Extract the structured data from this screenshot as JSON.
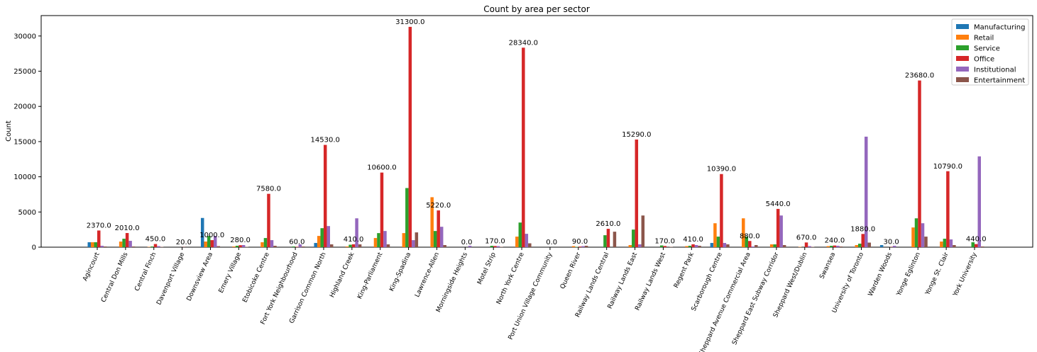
{
  "chart_data": {
    "type": "bar",
    "title": "Count by area per sector",
    "xlabel": "",
    "ylabel": "Count",
    "ylim": [
      0,
      32900
    ],
    "yticks": [
      0,
      5000,
      10000,
      15000,
      20000,
      25000,
      30000
    ],
    "grid": false,
    "legend_position": "top-right",
    "categories": [
      "Agincourt",
      "Central Don Mills",
      "Central Finch",
      "Davenport Village",
      "Downsview Area",
      "Emery Village",
      "Etobicoke Centre",
      "Fort York Neighbourhood",
      "Garrison Common North",
      "Highland Creek",
      "King-Parliament",
      "King-Spadina",
      "Lawrence-Allen",
      "Morningside Heights",
      "Motel Strip",
      "North York Centre",
      "Port Union Village Community",
      "Queen River",
      "Railway Lands Central",
      "Railway Lands East",
      "Railway Lands West",
      "Regent Park",
      "Scarborough Centre",
      "Sheppard Avenue Commercial Area",
      "Sheppard East Subway Corridor",
      "Sheppard West/Dublin",
      "Swansea",
      "University of Toronto",
      "Warden Woods",
      "Yonge Eglinton",
      "Yonge St. Clair",
      "York University"
    ],
    "series": [
      {
        "name": "Manufacturing",
        "color": "#1f77b4",
        "values": [
          700,
          0,
          0,
          0,
          4150,
          0,
          0,
          0,
          600,
          0,
          0,
          0,
          0,
          0,
          0,
          0,
          0,
          0,
          0,
          0,
          0,
          0,
          600,
          0,
          0,
          0,
          0,
          0,
          300,
          0,
          0,
          0
        ]
      },
      {
        "name": "Retail",
        "color": "#ff7f0e",
        "values": [
          700,
          800,
          50,
          0,
          800,
          100,
          700,
          0,
          1600,
          100,
          1300,
          2000,
          7100,
          0,
          0,
          1500,
          0,
          150,
          0,
          300,
          0,
          150,
          3400,
          4100,
          400,
          50,
          150,
          300,
          0,
          2800,
          800,
          0
        ]
      },
      {
        "name": "Service",
        "color": "#2ca02c",
        "values": [
          700,
          1200,
          100,
          0,
          1600,
          200,
          1300,
          100,
          2700,
          350,
          2000,
          8400,
          2300,
          0,
          200,
          3500,
          0,
          50,
          1700,
          2500,
          250,
          200,
          1500,
          1500,
          400,
          0,
          200,
          500,
          0,
          4100,
          1200,
          700
        ]
      },
      {
        "name": "Office",
        "color": "#d62728",
        "values": [
          2370,
          2010,
          450,
          20,
          1000,
          280,
          7580,
          60,
          14530,
          410,
          10600,
          31300,
          5220,
          0,
          170,
          28340,
          0,
          90,
          2610,
          15290,
          170,
          410,
          10390,
          880,
          5440,
          670,
          240,
          1880,
          30,
          23680,
          10790,
          440
        ]
      },
      {
        "name": "Institutional",
        "color": "#9467bd",
        "values": [
          200,
          900,
          150,
          0,
          1600,
          300,
          1000,
          400,
          3000,
          4100,
          2300,
          1000,
          2900,
          200,
          150,
          1900,
          0,
          150,
          0,
          400,
          0,
          300,
          600,
          100,
          4500,
          150,
          200,
          15700,
          200,
          3400,
          1100,
          12900
        ]
      },
      {
        "name": "Entertainment",
        "color": "#8c564b",
        "values": [
          100,
          100,
          50,
          0,
          150,
          50,
          200,
          100,
          400,
          400,
          400,
          2100,
          300,
          0,
          50,
          550,
          0,
          200,
          2200,
          4500,
          50,
          200,
          400,
          300,
          300,
          50,
          100,
          650,
          0,
          1500,
          300,
          100
        ]
      }
    ],
    "annotations": [
      "2370.0",
      "2010.0",
      "450.0",
      "20.0",
      "1000.0",
      "280.0",
      "7580.0",
      "60.0",
      "14530.0",
      "410.0",
      "10600.0",
      "31300.0",
      "5220.0",
      "0.0",
      "170.0",
      "28340.0",
      "0.0",
      "90.0",
      "2610.0",
      "15290.0",
      "170.0",
      "410.0",
      "10390.0",
      "880.0",
      "5440.0",
      "670.0",
      "240.0",
      "1880.0",
      "30.0",
      "23680.0",
      "10790.0",
      "440.0"
    ]
  }
}
